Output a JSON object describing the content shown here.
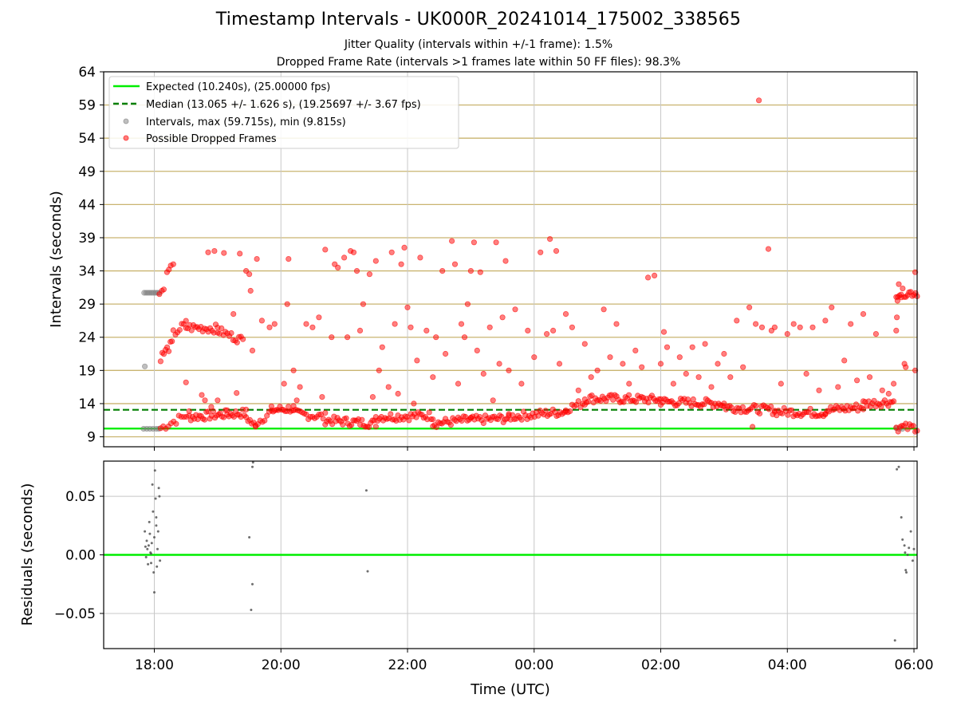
{
  "title": "Timestamp Intervals - UK000R_20241014_175002_338565",
  "subtitle_1": "Jitter Quality (intervals within +/-1 frame): 1.5%",
  "subtitle_2": "Dropped Frame Rate (intervals >1 frames late within 50 FF files): 98.3%",
  "colors": {
    "expected": "#00ee00",
    "median": "#007f00",
    "intervals": "#808080",
    "dropped": "#ff0000",
    "hgrid": "#c9b470",
    "vgrid": "#c8c8c8"
  },
  "chart_data": [
    {
      "type": "scatter",
      "ylabel": "Intervals (seconds)",
      "ylim": [
        7.5,
        64
      ],
      "yticks": [
        9,
        14,
        19,
        24,
        29,
        34,
        39,
        44,
        49,
        54,
        59,
        64
      ],
      "xlim_hours": [
        17.2,
        30.05
      ],
      "grid": "horizontal and vertical",
      "legend_position": "top-left",
      "legend": [
        {
          "key": "expected",
          "label": "Expected (10.240s), (25.00000 fps)"
        },
        {
          "key": "median",
          "label": "Median (13.065 +/- 1.626 s), (19.25697 +/- 3.67 fps)"
        },
        {
          "key": "intervals",
          "label": "Intervals, max (59.715s), min (9.815s)"
        },
        {
          "key": "dropped",
          "label": "Possible Dropped Frames"
        }
      ],
      "expected_value": 10.24,
      "median_value": 13.065,
      "intervals_points": [
        [
          17.85,
          19.6
        ],
        [
          17.83,
          10.2
        ],
        [
          17.88,
          10.2
        ],
        [
          17.93,
          10.2
        ],
        [
          17.98,
          10.2
        ],
        [
          18.03,
          10.2
        ],
        [
          18.07,
          10.2
        ],
        [
          17.84,
          30.7
        ],
        [
          17.87,
          30.7
        ],
        [
          17.9,
          30.7
        ],
        [
          17.93,
          30.7
        ],
        [
          17.96,
          30.7
        ],
        [
          17.99,
          30.7
        ],
        [
          18.02,
          30.7
        ],
        [
          18.05,
          30.7
        ],
        [
          18.08,
          30.7
        ],
        [
          29.72,
          10.3
        ],
        [
          29.77,
          10.2
        ],
        [
          29.82,
          10.2
        ]
      ],
      "dropped_segments": [
        {
          "x0": 18.1,
          "x1": 18.55,
          "y0": 10.3,
          "y1": 12.5,
          "n": 12
        },
        {
          "x0": 18.55,
          "x1": 19.45,
          "y0": 12.0,
          "y1": 12.6,
          "n": 34
        },
        {
          "x0": 19.45,
          "x1": 19.6,
          "y0": 12.0,
          "y1": 10.5,
          "n": 6
        },
        {
          "x0": 19.6,
          "x1": 19.85,
          "y0": 11.0,
          "y1": 12.8,
          "n": 8
        },
        {
          "x0": 19.85,
          "x1": 20.2,
          "y0": 13.0,
          "y1": 13.3,
          "n": 14
        },
        {
          "x0": 20.2,
          "x1": 20.7,
          "y0": 12.5,
          "y1": 12.0,
          "n": 16
        },
        {
          "x0": 20.7,
          "x1": 21.5,
          "y0": 11.5,
          "y1": 11.0,
          "n": 30
        },
        {
          "x0": 21.5,
          "x1": 22.4,
          "y0": 12.0,
          "y1": 12.2,
          "n": 32
        },
        {
          "x0": 22.4,
          "x1": 23.0,
          "y0": 11.0,
          "y1": 11.6,
          "n": 22
        },
        {
          "x0": 23.0,
          "x1": 23.6,
          "y0": 11.5,
          "y1": 11.8,
          "n": 22
        },
        {
          "x0": 23.6,
          "x1": 24.5,
          "y0": 12.0,
          "y1": 12.8,
          "n": 32
        },
        {
          "x0": 24.5,
          "x1": 24.8,
          "y0": 13.2,
          "y1": 14.2,
          "n": 10
        },
        {
          "x0": 24.8,
          "x1": 26.0,
          "y0": 14.8,
          "y1": 14.6,
          "n": 44
        },
        {
          "x0": 26.0,
          "x1": 27.0,
          "y0": 14.3,
          "y1": 14.0,
          "n": 36
        },
        {
          "x0": 27.0,
          "x1": 27.8,
          "y0": 13.5,
          "y1": 13.0,
          "n": 28
        },
        {
          "x0": 27.8,
          "x1": 28.6,
          "y0": 12.8,
          "y1": 12.6,
          "n": 28
        },
        {
          "x0": 28.6,
          "x1": 29.2,
          "y0": 13.0,
          "y1": 13.5,
          "n": 22
        },
        {
          "x0": 29.2,
          "x1": 29.68,
          "y0": 14.0,
          "y1": 14.3,
          "n": 18
        },
        {
          "x0": 18.1,
          "x1": 18.28,
          "y0": 21.0,
          "y1": 23.0,
          "n": 8
        },
        {
          "x0": 18.3,
          "x1": 18.5,
          "y0": 24.5,
          "y1": 26.0,
          "n": 7
        },
        {
          "x0": 18.5,
          "x1": 19.0,
          "y0": 25.5,
          "y1": 25.3,
          "n": 18
        },
        {
          "x0": 19.0,
          "x1": 19.4,
          "y0": 25.0,
          "y1": 23.5,
          "n": 14
        },
        {
          "x0": 29.72,
          "x1": 30.05,
          "y0": 30.7,
          "y1": 30.7,
          "n": 14
        },
        {
          "x0": 29.72,
          "x1": 30.05,
          "y0": 10.4,
          "y1": 10.4,
          "n": 12
        }
      ],
      "dropped_points": [
        [
          18.08,
          30.5
        ],
        [
          18.12,
          31.0
        ],
        [
          18.15,
          31.2
        ],
        [
          18.2,
          33.8
        ],
        [
          18.23,
          34.2
        ],
        [
          18.26,
          34.8
        ],
        [
          18.3,
          35.0
        ],
        [
          18.5,
          17.2
        ],
        [
          18.75,
          15.3
        ],
        [
          18.8,
          14.5
        ],
        [
          18.9,
          13.5
        ],
        [
          19.0,
          14.5
        ],
        [
          19.15,
          13.0
        ],
        [
          19.3,
          15.6
        ],
        [
          18.85,
          36.8
        ],
        [
          18.95,
          37.0
        ],
        [
          19.1,
          36.7
        ],
        [
          19.25,
          27.5
        ],
        [
          19.35,
          36.6
        ],
        [
          19.45,
          34.0
        ],
        [
          19.5,
          33.5
        ],
        [
          19.52,
          31.0
        ],
        [
          19.55,
          22.0
        ],
        [
          19.62,
          35.8
        ],
        [
          19.7,
          26.5
        ],
        [
          19.82,
          25.5
        ],
        [
          19.9,
          26.0
        ],
        [
          20.05,
          17.0
        ],
        [
          20.1,
          29.0
        ],
        [
          20.12,
          35.8
        ],
        [
          20.2,
          19.0
        ],
        [
          20.25,
          14.5
        ],
        [
          20.3,
          16.5
        ],
        [
          20.4,
          26.0
        ],
        [
          20.5,
          25.5
        ],
        [
          20.6,
          27.0
        ],
        [
          20.65,
          15.0
        ],
        [
          20.7,
          37.2
        ],
        [
          20.8,
          24.0
        ],
        [
          20.85,
          35.0
        ],
        [
          20.9,
          34.5
        ],
        [
          21.0,
          36.0
        ],
        [
          21.05,
          24.0
        ],
        [
          21.1,
          37.0
        ],
        [
          21.15,
          36.8
        ],
        [
          21.2,
          34.0
        ],
        [
          21.25,
          25.0
        ],
        [
          21.3,
          29.0
        ],
        [
          21.4,
          33.5
        ],
        [
          21.45,
          15.0
        ],
        [
          21.5,
          35.5
        ],
        [
          21.55,
          19.0
        ],
        [
          21.6,
          22.5
        ],
        [
          21.7,
          16.5
        ],
        [
          21.75,
          36.8
        ],
        [
          21.8,
          26.0
        ],
        [
          21.85,
          15.5
        ],
        [
          21.9,
          35.0
        ],
        [
          21.95,
          37.5
        ],
        [
          22.0,
          28.5
        ],
        [
          22.05,
          25.5
        ],
        [
          22.1,
          14.0
        ],
        [
          22.15,
          20.5
        ],
        [
          22.2,
          36.0
        ],
        [
          22.3,
          25.0
        ],
        [
          22.4,
          18.0
        ],
        [
          22.45,
          24.0
        ],
        [
          22.55,
          34.0
        ],
        [
          22.6,
          21.5
        ],
        [
          22.7,
          38.5
        ],
        [
          22.75,
          35.0
        ],
        [
          22.8,
          17.0
        ],
        [
          22.85,
          26.0
        ],
        [
          22.9,
          24.0
        ],
        [
          22.95,
          29.0
        ],
        [
          23.0,
          34.0
        ],
        [
          23.05,
          38.3
        ],
        [
          23.1,
          22.0
        ],
        [
          23.15,
          33.8
        ],
        [
          23.2,
          18.5
        ],
        [
          23.3,
          25.5
        ],
        [
          23.35,
          14.5
        ],
        [
          23.4,
          38.3
        ],
        [
          23.45,
          20.0
        ],
        [
          23.5,
          27.0
        ],
        [
          23.55,
          35.5
        ],
        [
          23.6,
          19.0
        ],
        [
          23.7,
          28.2
        ],
        [
          23.8,
          17.0
        ],
        [
          23.9,
          25.0
        ],
        [
          24.0,
          21.0
        ],
        [
          24.1,
          36.8
        ],
        [
          24.2,
          24.5
        ],
        [
          24.25,
          38.8
        ],
        [
          24.3,
          25.0
        ],
        [
          24.35,
          37.0
        ],
        [
          24.4,
          20.0
        ],
        [
          24.5,
          27.5
        ],
        [
          24.6,
          25.5
        ],
        [
          24.7,
          16.0
        ],
        [
          24.8,
          23.0
        ],
        [
          24.9,
          18.0
        ],
        [
          25.0,
          19.0
        ],
        [
          25.1,
          28.2
        ],
        [
          25.2,
          21.0
        ],
        [
          25.3,
          26.0
        ],
        [
          25.4,
          20.0
        ],
        [
          25.5,
          17.0
        ],
        [
          25.6,
          22.0
        ],
        [
          25.7,
          19.5
        ],
        [
          25.8,
          33.0
        ],
        [
          25.9,
          33.3
        ],
        [
          26.0,
          20.0
        ],
        [
          26.05,
          24.8
        ],
        [
          26.1,
          22.5
        ],
        [
          26.2,
          17.0
        ],
        [
          26.3,
          21.0
        ],
        [
          26.4,
          18.5
        ],
        [
          26.5,
          22.5
        ],
        [
          26.6,
          18.0
        ],
        [
          26.7,
          23.0
        ],
        [
          26.8,
          16.5
        ],
        [
          26.9,
          20.0
        ],
        [
          27.0,
          21.5
        ],
        [
          27.1,
          18.0
        ],
        [
          27.2,
          26.5
        ],
        [
          27.3,
          19.5
        ],
        [
          27.4,
          28.5
        ],
        [
          27.45,
          10.5
        ],
        [
          27.5,
          26.0
        ],
        [
          27.55,
          59.7
        ],
        [
          27.6,
          25.5
        ],
        [
          27.7,
          37.3
        ],
        [
          27.75,
          25.0
        ],
        [
          27.8,
          25.5
        ],
        [
          27.9,
          17.0
        ],
        [
          28.0,
          24.5
        ],
        [
          28.1,
          26.0
        ],
        [
          28.2,
          25.5
        ],
        [
          28.3,
          18.5
        ],
        [
          28.4,
          25.5
        ],
        [
          28.5,
          16.0
        ],
        [
          28.6,
          26.5
        ],
        [
          28.7,
          28.5
        ],
        [
          28.8,
          16.5
        ],
        [
          28.9,
          20.5
        ],
        [
          29.0,
          26.0
        ],
        [
          29.1,
          17.5
        ],
        [
          29.2,
          27.5
        ],
        [
          29.3,
          18.0
        ],
        [
          29.4,
          24.5
        ],
        [
          29.5,
          16.0
        ],
        [
          29.6,
          15.5
        ],
        [
          29.68,
          17.0
        ],
        [
          29.72,
          25.0
        ],
        [
          29.73,
          27.0
        ],
        [
          29.74,
          29.5
        ],
        [
          29.76,
          32.0
        ],
        [
          29.8,
          30.0
        ],
        [
          29.85,
          20.0
        ],
        [
          29.87,
          19.5
        ],
        [
          30.02,
          33.8
        ],
        [
          30.02,
          19.0
        ]
      ]
    },
    {
      "type": "scatter",
      "xlabel": "Time (UTC)",
      "ylabel": "Residuals (seconds)",
      "ylim": [
        -0.08,
        0.08
      ],
      "yticks": [
        0.05,
        0.0,
        -0.05
      ],
      "ytick_labels": [
        "0.05",
        "0.00",
        "−0.05"
      ],
      "xticks": [
        18,
        20,
        22,
        24,
        26,
        28,
        30
      ],
      "xtick_labels": [
        "18:00",
        "20:00",
        "22:00",
        "00:00",
        "02:00",
        "04:00",
        "06:00"
      ],
      "zero_line": 0.0,
      "points": [
        [
          17.85,
          0.02
        ],
        [
          17.86,
          0.007
        ],
        [
          17.87,
          -0.002
        ],
        [
          17.88,
          0.012
        ],
        [
          17.89,
          0.005
        ],
        [
          17.9,
          -0.008
        ],
        [
          17.91,
          0.008
        ],
        [
          17.92,
          0.028
        ],
        [
          17.93,
          0.018
        ],
        [
          17.94,
          0.002
        ],
        [
          17.95,
          -0.007
        ],
        [
          17.96,
          0.01
        ],
        [
          17.97,
          0.06
        ],
        [
          17.98,
          0.037
        ],
        [
          17.99,
          -0.015
        ],
        [
          18.0,
          -0.032
        ],
        [
          18.01,
          0.072
        ],
        [
          18.02,
          0.048
        ],
        [
          18.03,
          0.025
        ],
        [
          18.04,
          -0.01
        ],
        [
          18.05,
          0.005
        ],
        [
          18.06,
          0.02
        ],
        [
          18.07,
          0.057
        ],
        [
          18.08,
          0.05
        ],
        [
          18.09,
          -0.005
        ],
        [
          17.95,
          0.001
        ],
        [
          18.0,
          0.015
        ],
        [
          18.03,
          0.032
        ],
        [
          19.5,
          0.015
        ],
        [
          19.55,
          0.075
        ],
        [
          19.56,
          0.079
        ],
        [
          19.55,
          -0.025
        ],
        [
          19.53,
          -0.047
        ],
        [
          21.35,
          0.055
        ],
        [
          21.37,
          -0.014
        ],
        [
          29.7,
          -0.073
        ],
        [
          29.73,
          0.073
        ],
        [
          29.76,
          0.075
        ],
        [
          29.8,
          0.032
        ],
        [
          29.82,
          0.013
        ],
        [
          29.85,
          0.008
        ],
        [
          29.86,
          0.002
        ],
        [
          29.87,
          -0.013
        ],
        [
          29.88,
          -0.015
        ],
        [
          29.9,
          0.0
        ],
        [
          29.92,
          0.006
        ],
        [
          29.95,
          0.02
        ],
        [
          29.98,
          -0.005
        ],
        [
          30.0,
          0.005
        ]
      ]
    }
  ]
}
